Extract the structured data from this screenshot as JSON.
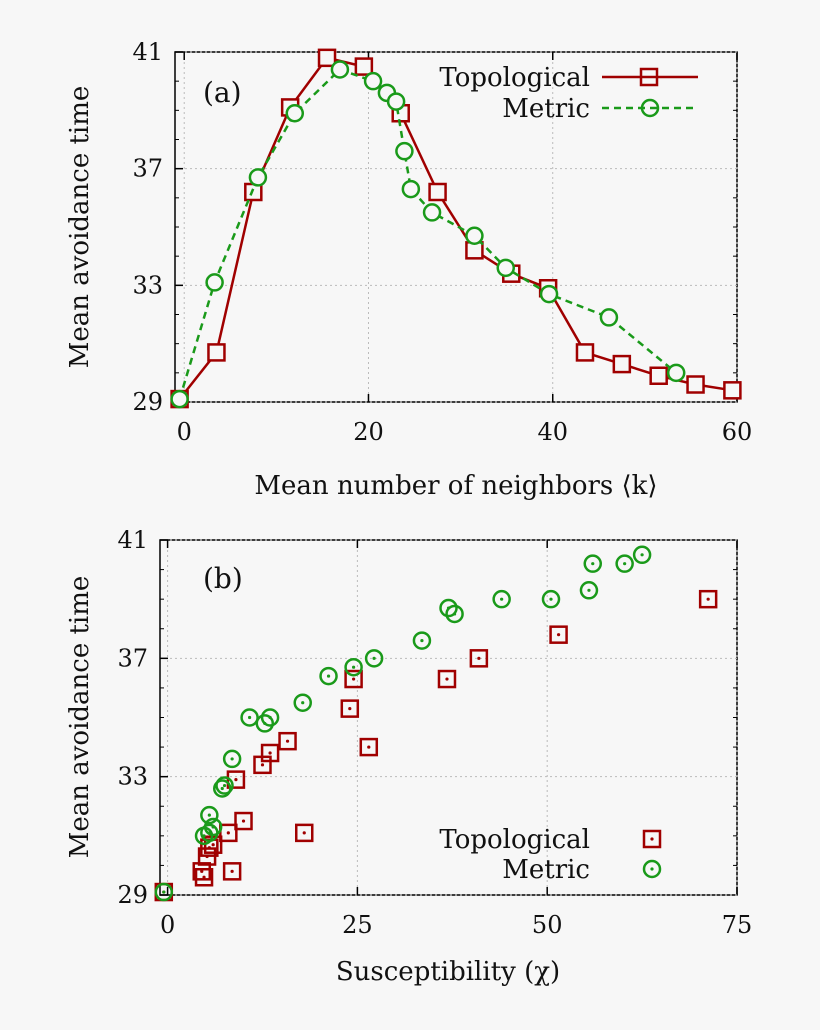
{
  "colors": {
    "topological": "#a00000",
    "metric": "#1a9a1a",
    "grid": "#bbbbbb",
    "axis": "#000000"
  },
  "chart_data": [
    {
      "type": "line",
      "panel_label": "(a)",
      "xlabel": "Mean number of neighbors ⟨k⟩",
      "ylabel": "Mean avoidance time",
      "xlim": [
        -1,
        60
      ],
      "ylim": [
        29,
        41
      ],
      "xticks": [
        0,
        20,
        40,
        60
      ],
      "yticks": [
        29,
        33,
        37,
        41
      ],
      "grid": true,
      "legend_placement": "top-right",
      "series": [
        {
          "name": "Topological",
          "marker": "square",
          "line": "solid",
          "x": [
            -0.5,
            3.5,
            7.5,
            11.5,
            15.5,
            19.5,
            23.5,
            27.5,
            31.5,
            35.5,
            39.5,
            43.5,
            47.5,
            51.5,
            55.5,
            59.5
          ],
          "y": [
            29.1,
            30.7,
            36.2,
            39.1,
            40.8,
            40.5,
            38.9,
            36.2,
            34.2,
            33.4,
            32.9,
            30.7,
            30.3,
            29.9,
            29.6,
            29.4
          ]
        },
        {
          "name": "Metric",
          "marker": "circle",
          "line": "dashed",
          "x": [
            -0.5,
            3.3,
            8.0,
            12.0,
            16.9,
            20.5,
            22.0,
            23.0,
            23.9,
            24.6,
            26.9,
            31.5,
            34.9,
            39.6,
            46.1,
            53.4
          ],
          "y": [
            29.1,
            33.1,
            36.7,
            38.9,
            40.4,
            40.0,
            39.6,
            39.3,
            37.6,
            36.3,
            35.5,
            34.7,
            33.6,
            32.7,
            31.9,
            30.0
          ]
        }
      ]
    },
    {
      "type": "scatter",
      "panel_label": "(b)",
      "xlabel": "Susceptibility (χ)",
      "ylabel": "Mean avoidance time",
      "xlim": [
        -1,
        75
      ],
      "ylim": [
        29,
        41
      ],
      "xticks": [
        0,
        25,
        50,
        75
      ],
      "yticks": [
        29,
        33,
        37,
        41
      ],
      "grid": true,
      "legend_placement": "bottom-right",
      "series": [
        {
          "name": "Topological",
          "marker": "square-dot",
          "x": [
            -0.5,
            4.5,
            4.8,
            5.2,
            5.5,
            6.0,
            8.0,
            8.5,
            9.0,
            10.0,
            12.5,
            13.5,
            15.8,
            18.0,
            24.0,
            24.5,
            26.5,
            36.8,
            41.0,
            51.5,
            71.2
          ],
          "y": [
            29.1,
            29.8,
            29.6,
            30.3,
            30.6,
            30.7,
            31.1,
            29.8,
            32.9,
            31.5,
            33.4,
            33.8,
            34.2,
            31.1,
            35.3,
            36.3,
            34.0,
            36.3,
            37.0,
            37.8,
            39.0
          ]
        },
        {
          "name": "Metric",
          "marker": "circle-dot",
          "x": [
            -0.5,
            4.8,
            5.5,
            5.5,
            6.0,
            7.2,
            7.5,
            8.5,
            10.8,
            12.8,
            13.5,
            17.8,
            21.2,
            24.5,
            27.2,
            33.5,
            37.0,
            37.8,
            44.0,
            50.5,
            55.5,
            56.0,
            60.2,
            62.5
          ],
          "y": [
            29.1,
            31.0,
            31.7,
            31.1,
            31.3,
            32.6,
            32.7,
            33.6,
            35.0,
            34.8,
            35.0,
            35.5,
            36.4,
            36.7,
            37.0,
            37.6,
            38.7,
            38.5,
            39.0,
            39.0,
            39.3,
            40.2,
            40.2,
            40.5
          ]
        }
      ]
    }
  ]
}
